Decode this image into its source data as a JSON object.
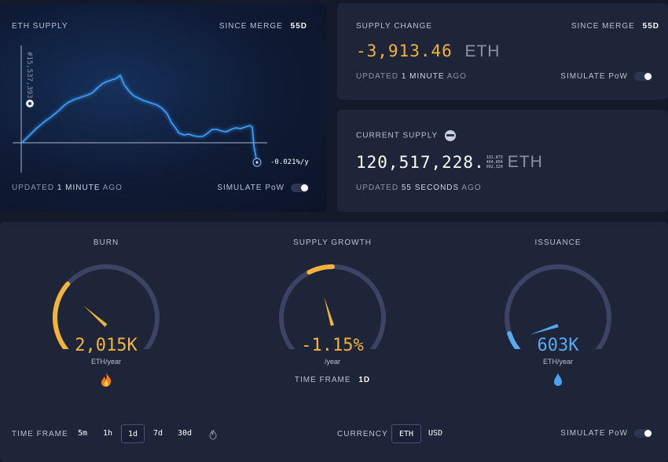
{
  "eth_supply": {
    "title": "ETH SUPPLY",
    "since_label": "SINCE MERGE",
    "since_value": "55d",
    "y_label": "#15,537,393",
    "rate": "-0.021%/y",
    "updated_prefix": "UPDATED",
    "updated_value": "1 MINUTE",
    "updated_suffix": "AGO",
    "simulate_label": "SIMULATE PoW"
  },
  "supply_change": {
    "title": "SUPPLY CHANGE",
    "since_label": "SINCE MERGE",
    "since_value": "55d",
    "value": "-3,913.46",
    "unit": "ETH",
    "updated_prefix": "UPDATED",
    "updated_value": "1 MINUTE",
    "updated_suffix": "AGO",
    "simulate_label": "SIMULATE PoW"
  },
  "current_supply": {
    "title": "CURRENT SUPPLY",
    "value": "120,517,228.",
    "decimals": [
      "191,873",
      "404,804",
      "092,320"
    ],
    "unit": "ETH",
    "updated_prefix": "UPDATED",
    "updated_value": "55 SECONDS",
    "updated_suffix": "AGO"
  },
  "gauges": {
    "burn": {
      "title": "BURN",
      "value": "2,015K",
      "unit": "ETH/year",
      "icon": "fire-icon",
      "level": 0.32
    },
    "growth": {
      "title": "SUPPLY GROWTH",
      "value": "-1.15%",
      "unit": "/year",
      "timeframe_label": "TIME FRAME",
      "timeframe_value": "1d",
      "level": 0.44
    },
    "issuance": {
      "title": "ISSUANCE",
      "value": "603K",
      "unit": "ETH/year",
      "icon": "droplet-icon",
      "level": 0.1
    }
  },
  "footer": {
    "timeframe_label": "TIME FRAME",
    "timeframes": [
      "5m",
      "1h",
      "1d",
      "7d",
      "30d"
    ],
    "active_timeframe": "1d",
    "currency_label": "CURRENCY",
    "currencies": [
      "ETH",
      "USD"
    ],
    "active_currency": "ETH",
    "simulate_label": "SIMULATE PoW"
  },
  "colors": {
    "accent": "#f4b43a",
    "blue": "#5aa9f0",
    "background": "#141a29",
    "card": "#1e2538"
  }
}
